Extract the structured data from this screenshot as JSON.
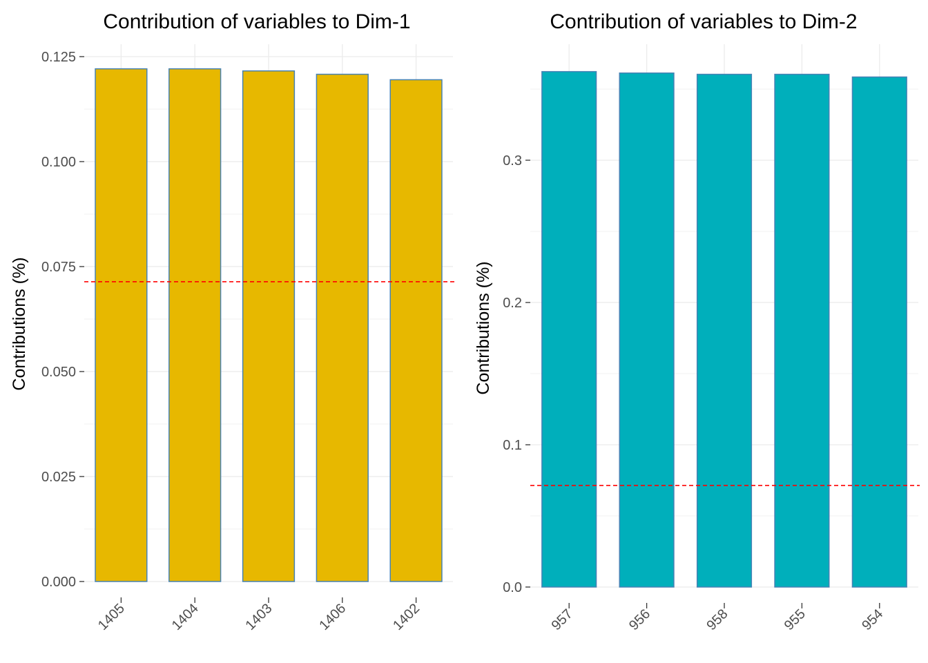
{
  "chart_data": [
    {
      "type": "bar",
      "title": "Contribution of variables to Dim-1",
      "xlabel": "",
      "ylabel": "Contributions (%)",
      "categories": [
        "1405",
        "1404",
        "1403",
        "1406",
        "1402"
      ],
      "values": [
        0.1221,
        0.1221,
        0.1216,
        0.1208,
        0.1195
      ],
      "ylim": [
        0,
        0.125
      ],
      "yticks": [
        0.0,
        0.025,
        0.05,
        0.075,
        0.1,
        0.125
      ],
      "ytick_labels": [
        "0.000",
        "0.025",
        "0.050",
        "0.075",
        "0.100",
        "0.125"
      ],
      "reference_line": 0.0714,
      "bar_fill": "#E7B800",
      "bar_stroke": "#4682B4",
      "reference_color": "#FF0000",
      "grid": true,
      "legend": "none"
    },
    {
      "type": "bar",
      "title": "Contribution of variables to Dim-2",
      "xlabel": "",
      "ylabel": "Contributions (%)",
      "categories": [
        "957",
        "956",
        "958",
        "955",
        "954"
      ],
      "values": [
        0.3623,
        0.3613,
        0.3604,
        0.3604,
        0.3585
      ],
      "ylim": [
        0,
        0.36
      ],
      "yticks": [
        0.0,
        0.1,
        0.2,
        0.3
      ],
      "ytick_labels": [
        "0.0",
        "0.1",
        "0.2",
        "0.3"
      ],
      "reference_line": 0.0714,
      "bar_fill": "#00AFBB",
      "bar_stroke": "#4682B4",
      "reference_color": "#FF0000",
      "grid": true,
      "legend": "none"
    }
  ]
}
